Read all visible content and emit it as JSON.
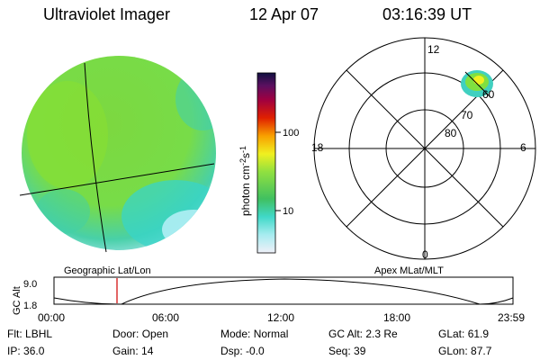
{
  "header": {
    "instrument": "Ultraviolet Imager",
    "date": "12 Apr 07",
    "time": "03:16:39 UT"
  },
  "colorbar": {
    "label_base": "photon cm",
    "label_exp1": "-2",
    "label_mid": "s",
    "label_exp2": "-1",
    "ticks": [
      "100",
      "10"
    ]
  },
  "image_panel": {
    "caption": "Geographic Lat/Lon"
  },
  "polar_panel": {
    "caption": "Apex  MLat/MLT",
    "mlt_labels": {
      "top": "12",
      "left": "18",
      "right": "6",
      "bottom": "0"
    },
    "lat_labels": [
      "60",
      "70",
      "80"
    ]
  },
  "timeline": {
    "ylabel": "GC Alt",
    "ymax_label": "9.0",
    "ymin_label": "1.8",
    "xticks": [
      "00:00",
      "06:00",
      "12:00",
      "18:00",
      "23:59"
    ]
  },
  "status": {
    "row1": [
      {
        "key": "Flt:",
        "value": "LBHL"
      },
      {
        "key": "Door:",
        "value": "Open"
      },
      {
        "key": "Mode:",
        "value": "Normal"
      },
      {
        "key": "GC Alt:",
        "value": "2.3 Re"
      },
      {
        "key": "GLat:",
        "value": "61.9"
      }
    ],
    "row2": [
      {
        "key": "IP:",
        "value": "36.0"
      },
      {
        "key": "Gain:",
        "value": "14"
      },
      {
        "key": "Dsp:",
        "value": "-0.0"
      },
      {
        "key": "Seq:",
        "value": "39"
      },
      {
        "key": "GLon:",
        "value": "87.7"
      }
    ]
  },
  "colors": {
    "disk_main": "#7fe040",
    "disk_cyan": "#40d8c8",
    "disk_light": "#a8ecf0",
    "marker": "#d00000"
  },
  "chart_data": {
    "type": "line",
    "title": "",
    "xlabel": "",
    "ylabel": "GC Alt",
    "xlim": [
      "00:00",
      "23:59"
    ],
    "ylim": [
      1.8,
      9.0
    ],
    "marker_time": "03:16:39",
    "colorbar_ticks": [
      10,
      100
    ]
  }
}
